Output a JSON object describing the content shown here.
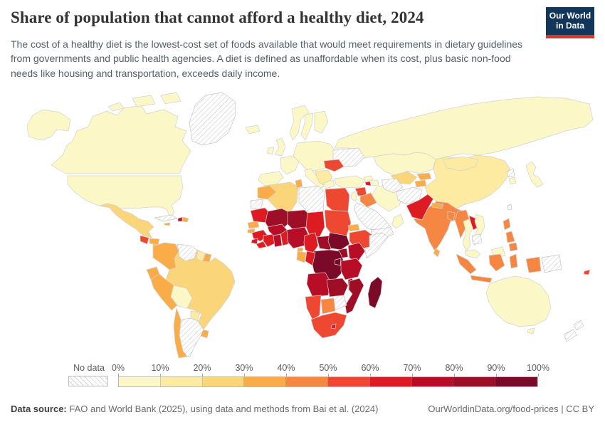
{
  "header": {
    "title": "Share of population that cannot afford a healthy diet, 2024",
    "subtitle": "The cost of a healthy diet is the lowest-cost set of foods available that would meet requirements in dietary guidelines from governments and public health agencies. A diet is defined as unaffordable when its cost, plus basic non-food needs like housing and transportation, exceeds daily income.",
    "logo": {
      "line1": "Our World",
      "line2": "in Data",
      "bg": "#12355C",
      "accent": "#D6382B"
    }
  },
  "legend": {
    "no_data_label": "No data",
    "tick_labels": [
      "0%",
      "10%",
      "20%",
      "30%",
      "40%",
      "50%",
      "60%",
      "70%",
      "80%",
      "90%",
      "100%"
    ]
  },
  "footer": {
    "source_label": "Data source:",
    "source_text": " FAO and World Bank (2025), using data and methods from Bai et al. (2024)",
    "right_text": "OurWorldinData.org/food-prices | CC BY"
  },
  "map": {
    "border_color": "#d2d2d2",
    "no_data_style": "diagonal-hatch",
    "ocean_color": "#ffffff"
  },
  "chart_data": {
    "type": "heatmap",
    "subtype": "world-choropleth",
    "title": "Share of population that cannot afford a healthy diet, 2024",
    "unit": "% of population",
    "bin_edges_percent": [
      0,
      10,
      20,
      30,
      40,
      50,
      60,
      70,
      80,
      90,
      100
    ],
    "bin_labels": [
      "0-10%",
      "10-20%",
      "20-30%",
      "30-40%",
      "40-50%",
      "50-60%",
      "60-70%",
      "70-80%",
      "80-90%",
      "90-100%"
    ],
    "bin_colors": [
      "#FBF7C7",
      "#FDEBA2",
      "#FBD579",
      "#F9AC48",
      "#F58742",
      "#EF4832",
      "#DC1C22",
      "#B70D27",
      "#9E0E27",
      "#7A0A27"
    ],
    "legend_position": "bottom",
    "countries": {
      "canada": {
        "name": "Canada",
        "bin": 0
      },
      "united_states": {
        "name": "United States",
        "bin": 0
      },
      "greenland": {
        "name": "Greenland",
        "bin": null
      },
      "mexico": {
        "name": "Mexico",
        "bin": 2
      },
      "guatemala": {
        "name": "Guatemala",
        "bin": 5
      },
      "honduras": {
        "name": "Honduras",
        "bin": 3
      },
      "nicaragua": {
        "name": "Nicaragua",
        "bin": 3
      },
      "costa_rica": {
        "name": "Costa Rica",
        "bin": 3
      },
      "panama": {
        "name": "Panama",
        "bin": 3
      },
      "cuba": {
        "name": "Cuba",
        "bin": null
      },
      "jamaica": {
        "name": "Jamaica",
        "bin": 3
      },
      "haiti": {
        "name": "Haiti",
        "bin": 7
      },
      "dominican_republic": {
        "name": "Dominican Republic",
        "bin": 3
      },
      "colombia": {
        "name": "Colombia",
        "bin": 3
      },
      "venezuela": {
        "name": "Venezuela",
        "bin": null
      },
      "guyana": {
        "name": "Guyana",
        "bin": 1
      },
      "suriname": {
        "name": "Suriname",
        "bin": 3
      },
      "ecuador": {
        "name": "Ecuador",
        "bin": 3
      },
      "peru": {
        "name": "Peru",
        "bin": 3
      },
      "bolivia": {
        "name": "Bolivia",
        "bin": 0
      },
      "brazil": {
        "name": "Brazil",
        "bin": 2
      },
      "paraguay": {
        "name": "Paraguay",
        "bin": 1
      },
      "uruguay": {
        "name": "Uruguay",
        "bin": 3
      },
      "chile": {
        "name": "Chile",
        "bin": 3
      },
      "argentina": {
        "name": "Argentina",
        "bin": null
      },
      "iceland": {
        "name": "Iceland",
        "bin": 0
      },
      "united_kingdom": {
        "name": "United Kingdom",
        "bin": 0
      },
      "ireland": {
        "name": "Ireland",
        "bin": 0
      },
      "norway": {
        "name": "Norway",
        "bin": 0
      },
      "sweden": {
        "name": "Sweden",
        "bin": 0
      },
      "finland": {
        "name": "Finland",
        "bin": 0
      },
      "denmark": {
        "name": "Denmark",
        "bin": 0
      },
      "germany": {
        "name": "Germany",
        "bin": 0
      },
      "poland": {
        "name": "Poland",
        "bin": 0
      },
      "belarus": {
        "name": "Belarus",
        "bin": 0
      },
      "france": {
        "name": "France",
        "bin": 0
      },
      "spain": {
        "name": "Spain",
        "bin": 0
      },
      "portugal": {
        "name": "Portugal",
        "bin": 0
      },
      "italy": {
        "name": "Italy",
        "bin": 0
      },
      "switzerland": {
        "name": "Switzerland",
        "bin": 0
      },
      "austria": {
        "name": "Austria",
        "bin": 0
      },
      "czechia": {
        "name": "Czechia",
        "bin": 0
      },
      "hungary": {
        "name": "Hungary",
        "bin": 0
      },
      "serbia": {
        "name": "Serbia",
        "bin": 1
      },
      "bosnia_and_herzegovina": {
        "name": "Bosnia and Herzegovina",
        "bin": 1
      },
      "albania": {
        "name": "Albania",
        "bin": 1
      },
      "north_macedonia": {
        "name": "North Macedonia",
        "bin": 1
      },
      "bulgaria": {
        "name": "Bulgaria",
        "bin": 1
      },
      "greece": {
        "name": "Greece",
        "bin": 0
      },
      "romania": {
        "name": "Romania",
        "bin": 5
      },
      "ukraine": {
        "name": "Ukraine",
        "bin": null
      },
      "russia": {
        "name": "Russia",
        "bin": 0
      },
      "turkey": {
        "name": "Turkey",
        "bin": 0
      },
      "syria": {
        "name": "Syria",
        "bin": 5
      },
      "iraq": {
        "name": "Iraq",
        "bin": 4
      },
      "iran": {
        "name": "Iran",
        "bin": 0
      },
      "saudi_arabia": {
        "name": "Saudi Arabia",
        "bin": null
      },
      "yemen": {
        "name": "Yemen",
        "bin": null
      },
      "oman": {
        "name": "Oman",
        "bin": 0
      },
      "jordan": {
        "name": "Jordan",
        "bin": 0
      },
      "georgia": {
        "name": "Georgia",
        "bin": 0
      },
      "armenia": {
        "name": "Armenia",
        "bin": 6
      },
      "azerbaijan": {
        "name": "Azerbaijan",
        "bin": 0
      },
      "kazakhstan": {
        "name": "Kazakhstan",
        "bin": 0
      },
      "uzbekistan": {
        "name": "Uzbekistan",
        "bin": 2
      },
      "turkmenistan": {
        "name": "Turkmenistan",
        "bin": null
      },
      "kyrgyzstan": {
        "name": "Kyrgyzstan",
        "bin": 3
      },
      "tajikistan": {
        "name": "Tajikistan",
        "bin": 3
      },
      "afghanistan": {
        "name": "Afghanistan",
        "bin": null
      },
      "pakistan": {
        "name": "Pakistan",
        "bin": 6
      },
      "india": {
        "name": "India",
        "bin": 4
      },
      "nepal": {
        "name": "Nepal",
        "bin": 3
      },
      "bangladesh": {
        "name": "Bangladesh",
        "bin": 4
      },
      "sri_lanka": {
        "name": "Sri Lanka",
        "bin": 3
      },
      "myanmar": {
        "name": "Myanmar",
        "bin": 4
      },
      "china": {
        "name": "China",
        "bin": 1
      },
      "mongolia": {
        "name": "Mongolia",
        "bin": 1
      },
      "north_korea": {
        "name": "North Korea",
        "bin": null
      },
      "south_korea": {
        "name": "South Korea",
        "bin": 0
      },
      "japan": {
        "name": "Japan",
        "bin": 0
      },
      "taiwan": {
        "name": "Taiwan",
        "bin": null
      },
      "thailand": {
        "name": "Thailand",
        "bin": 0
      },
      "laos": {
        "name": "Laos",
        "bin": 6
      },
      "vietnam": {
        "name": "Vietnam",
        "bin": 0
      },
      "cambodia": {
        "name": "Cambodia",
        "bin": null
      },
      "malaysia": {
        "name": "Malaysia",
        "bin": 0
      },
      "indonesia": {
        "name": "Indonesia",
        "bin": 4
      },
      "philippines": {
        "name": "Philippines",
        "bin": 4
      },
      "papua_new_guinea": {
        "name": "Papua New Guinea",
        "bin": null
      },
      "australia": {
        "name": "Australia",
        "bin": 0
      },
      "new_zealand": {
        "name": "New Zealand",
        "bin": null
      },
      "fiji": {
        "name": "Fiji",
        "bin": 5
      },
      "morocco": {
        "name": "Morocco",
        "bin": 3
      },
      "western_sahara": {
        "name": "Western Sahara",
        "bin": null
      },
      "algeria": {
        "name": "Algeria",
        "bin": 2
      },
      "tunisia": {
        "name": "Tunisia",
        "bin": 3
      },
      "libya": {
        "name": "Libya",
        "bin": null
      },
      "egypt": {
        "name": "Egypt",
        "bin": 5
      },
      "mauritania": {
        "name": "Mauritania",
        "bin": 6
      },
      "mali": {
        "name": "Mali",
        "bin": 8
      },
      "niger": {
        "name": "Niger",
        "bin": 8
      },
      "chad": {
        "name": "Chad",
        "bin": 6
      },
      "sudan": {
        "name": "Sudan",
        "bin": 5
      },
      "eritrea": {
        "name": "Eritrea",
        "bin": 3
      },
      "ethiopia": {
        "name": "Ethiopia",
        "bin": 5
      },
      "somalia": {
        "name": "Somalia",
        "bin": null
      },
      "senegal": {
        "name": "Senegal",
        "bin": 3
      },
      "guinea_bissau": {
        "name": "Guinea-Bissau",
        "bin": 3
      },
      "guinea": {
        "name": "Guinea",
        "bin": 6
      },
      "sierra_leone": {
        "name": "Sierra Leone",
        "bin": 6
      },
      "liberia": {
        "name": "Liberia",
        "bin": 6
      },
      "cote_divoire": {
        "name": "Cote d'Ivoire",
        "bin": 6
      },
      "ghana": {
        "name": "Ghana",
        "bin": 7
      },
      "togo": {
        "name": "Togo",
        "bin": 7
      },
      "benin": {
        "name": "Benin",
        "bin": 6
      },
      "burkina_faso": {
        "name": "Burkina Faso",
        "bin": 7
      },
      "nigeria": {
        "name": "Nigeria",
        "bin": 7
      },
      "cameroon": {
        "name": "Cameroon",
        "bin": 6
      },
      "central_african_republic": {
        "name": "Central African Republic",
        "bin": 8
      },
      "south_sudan": {
        "name": "South Sudan",
        "bin": 9
      },
      "uganda": {
        "name": "Uganda",
        "bin": 8
      },
      "kenya": {
        "name": "Kenya",
        "bin": 7
      },
      "democratic_republic_of_congo": {
        "name": "Democratic Republic of Congo",
        "bin": 9
      },
      "congo": {
        "name": "Congo",
        "bin": 6
      },
      "gabon": {
        "name": "Gabon",
        "bin": 3
      },
      "equatorial_guinea": {
        "name": "Equatorial Guinea",
        "bin": 3
      },
      "rwanda": {
        "name": "Rwanda",
        "bin": 9
      },
      "burundi": {
        "name": "Burundi",
        "bin": 9
      },
      "tanzania": {
        "name": "Tanzania",
        "bin": 7
      },
      "angola": {
        "name": "Angola",
        "bin": 7
      },
      "zambia": {
        "name": "Zambia",
        "bin": 8
      },
      "malawi": {
        "name": "Malawi",
        "bin": 8
      },
      "mozambique": {
        "name": "Mozambique",
        "bin": 8
      },
      "zimbabwe": {
        "name": "Zimbabwe",
        "bin": null
      },
      "namibia": {
        "name": "Namibia",
        "bin": 5
      },
      "botswana": {
        "name": "Botswana",
        "bin": 4
      },
      "south_africa": {
        "name": "South Africa",
        "bin": 5
      },
      "lesotho": {
        "name": "Lesotho",
        "bin": 6
      },
      "madagascar": {
        "name": "Madagascar",
        "bin": 9
      }
    }
  }
}
